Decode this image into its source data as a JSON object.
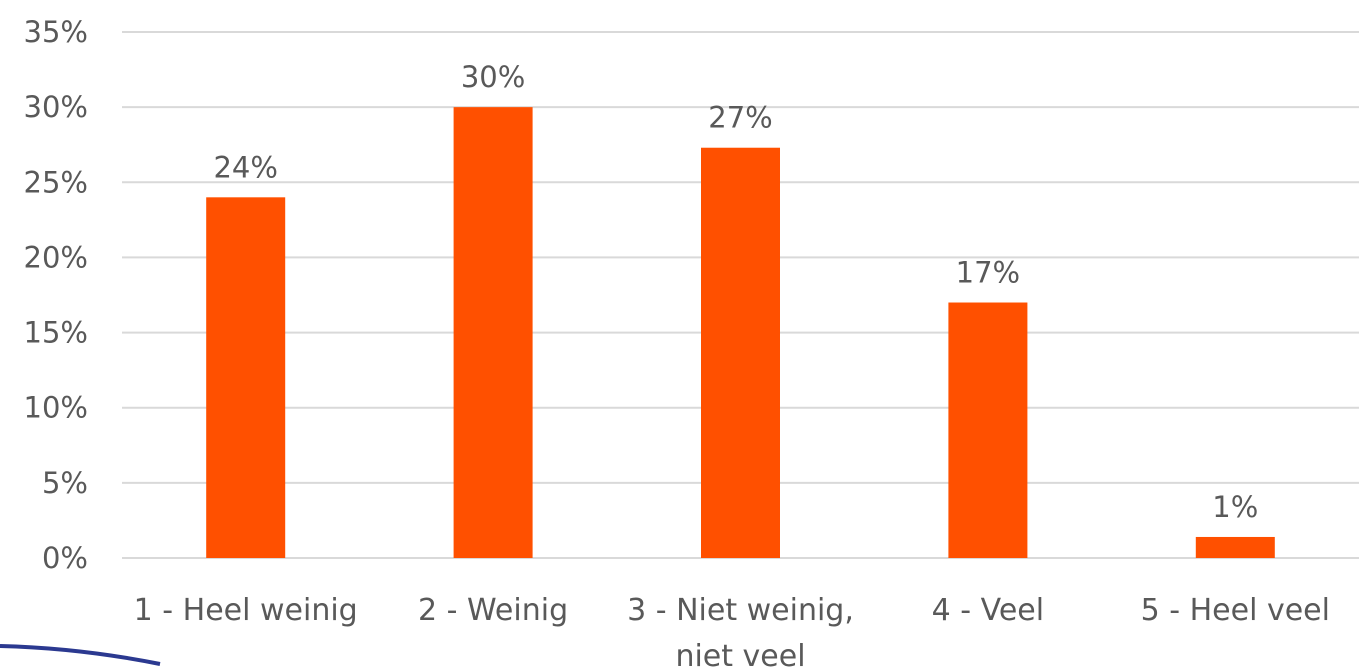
{
  "chart_data": {
    "type": "bar",
    "categories": [
      [
        "1 - Heel weinig"
      ],
      [
        "2 - Weinig"
      ],
      [
        "3 - Niet weinig,",
        "niet veel"
      ],
      [
        "4 - Veel"
      ],
      [
        "5 - Heel veel"
      ]
    ],
    "values": [
      24,
      30,
      27.3,
      17,
      1.4
    ],
    "data_labels": [
      "24%",
      "30%",
      "27%",
      "17%",
      "1%"
    ],
    "ylim": [
      0,
      35
    ],
    "yticks": [
      0,
      5,
      10,
      15,
      20,
      25,
      30,
      35
    ],
    "ytick_labels": [
      "0%",
      "5%",
      "10%",
      "15%",
      "20%",
      "25%",
      "30%",
      "35%"
    ],
    "grid": true,
    "bar_color": "#ff5000",
    "title": "",
    "xlabel": "",
    "ylabel": ""
  }
}
